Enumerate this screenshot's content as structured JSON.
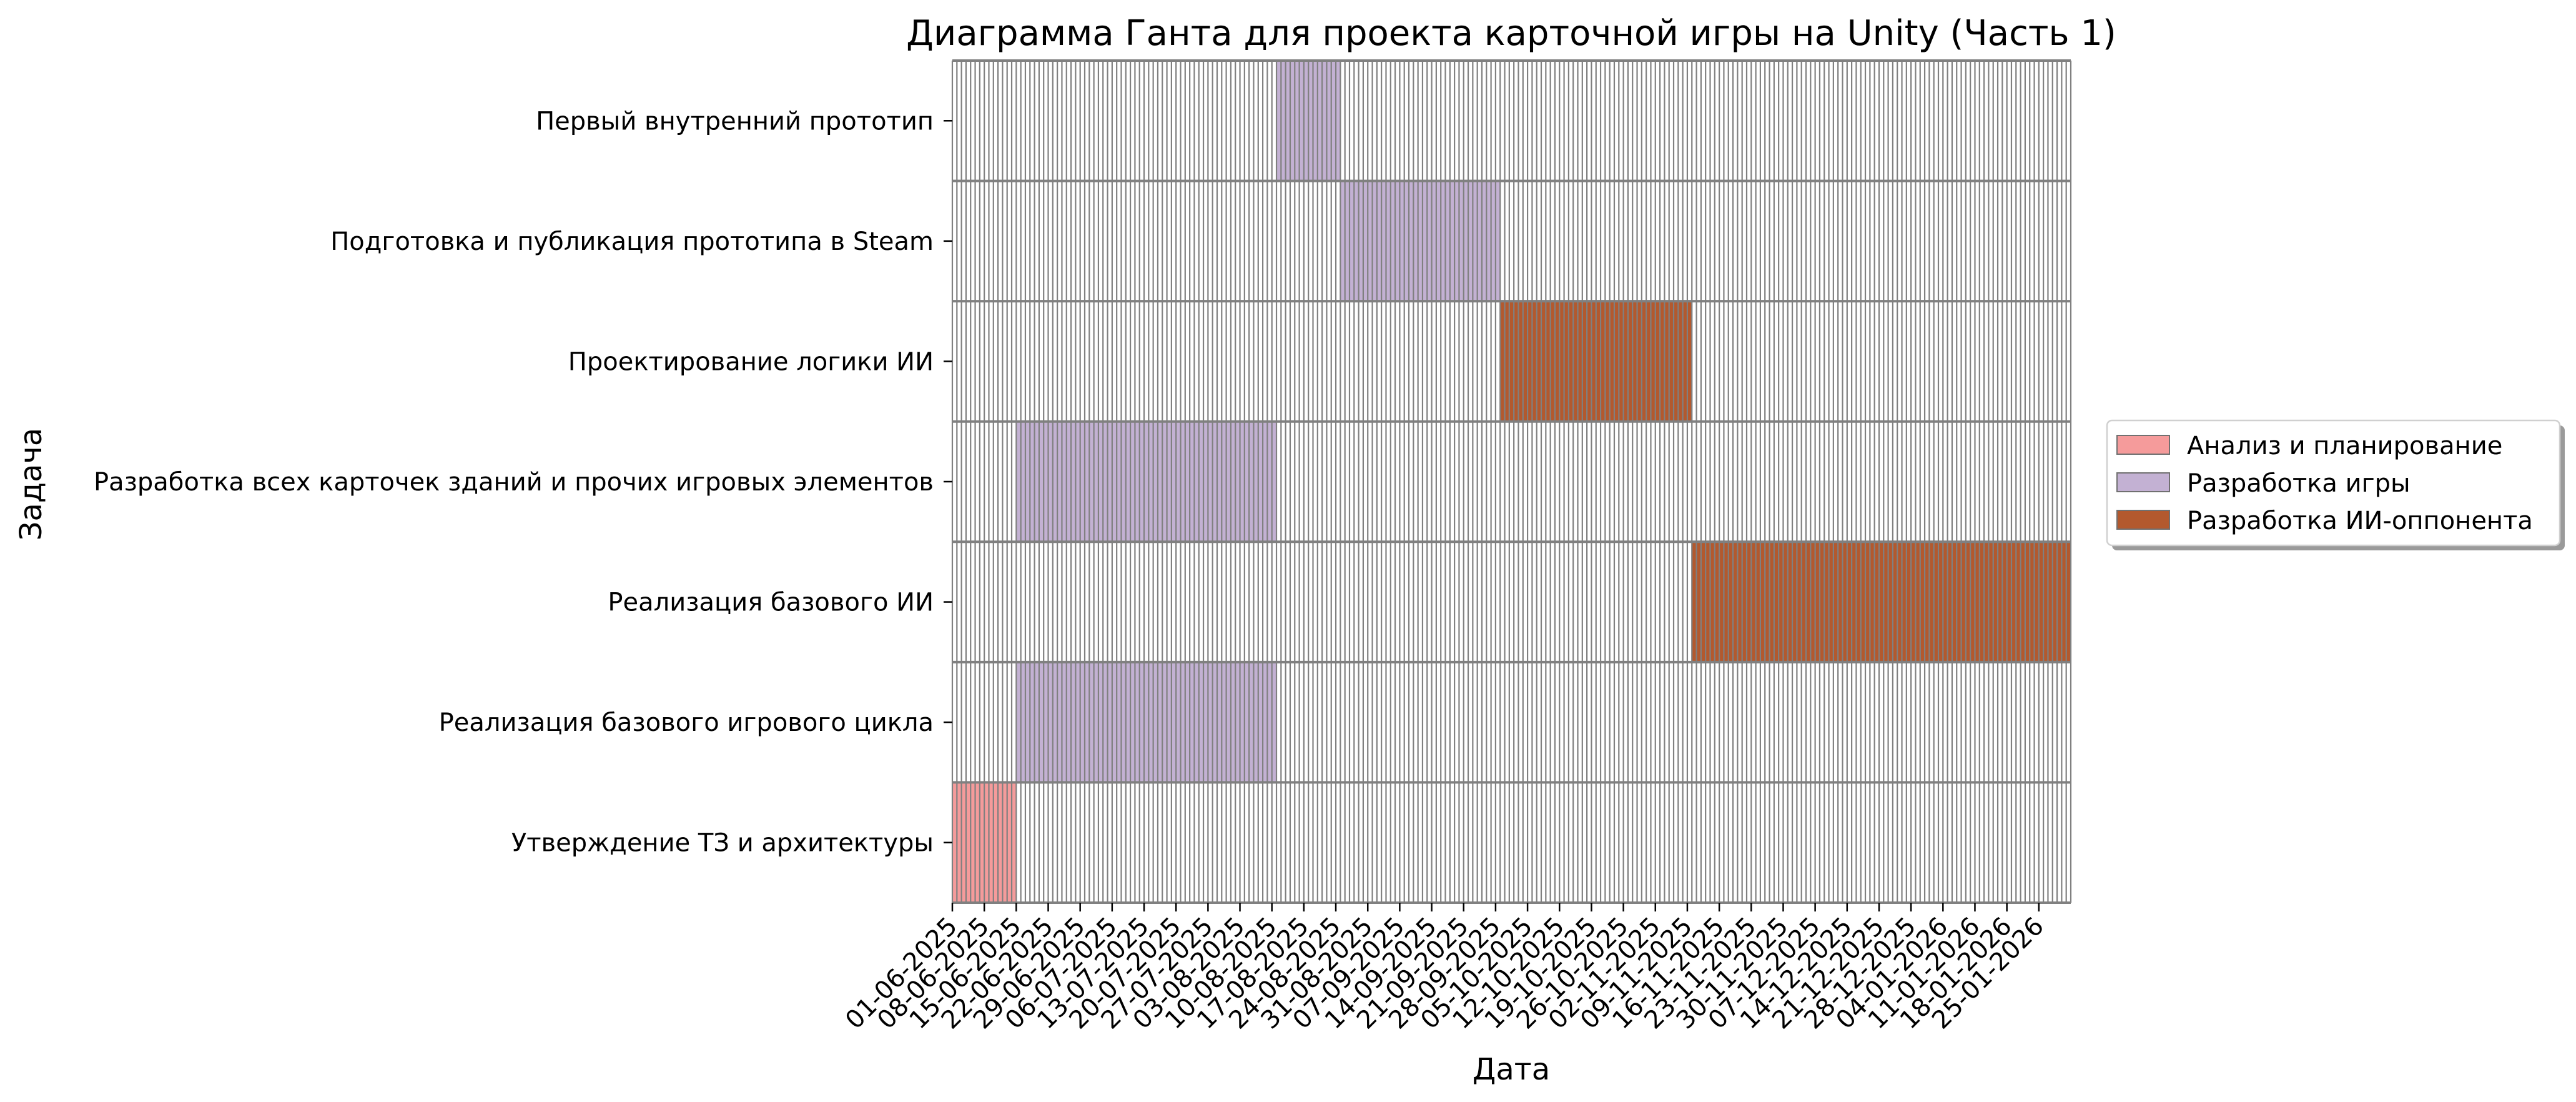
{
  "chart_data": {
    "type": "gantt",
    "title": "Диаграмма Ганта для проекта карточной игры на Unity (Часть 1)",
    "xlabel": "Дата",
    "ylabel": "Задача",
    "x_range": [
      "2025-06-01",
      "2026-01-31"
    ],
    "x_ticks": [
      "01-06-2025",
      "08-06-2025",
      "15-06-2025",
      "22-06-2025",
      "29-06-2025",
      "06-07-2025",
      "13-07-2025",
      "20-07-2025",
      "27-07-2025",
      "03-08-2025",
      "10-08-2025",
      "17-08-2025",
      "24-08-2025",
      "31-08-2025",
      "07-09-2025",
      "14-09-2025",
      "21-09-2025",
      "28-09-2025",
      "05-10-2025",
      "12-10-2025",
      "19-10-2025",
      "26-10-2025",
      "02-11-2025",
      "09-11-2025",
      "16-11-2025",
      "23-11-2025",
      "30-11-2025",
      "07-12-2025",
      "14-12-2025",
      "21-12-2025",
      "28-12-2025",
      "04-01-2026",
      "11-01-2026",
      "18-01-2026",
      "25-01-2026"
    ],
    "grid": true,
    "legend_position": "center-right",
    "categories": [
      {
        "name": "Анализ и планирование",
        "color": "#f59b9b"
      },
      {
        "name": "Разработка игры",
        "color": "#c3b1d3"
      },
      {
        "name": "Разработка ИИ-оппонента",
        "color": "#b3592e"
      }
    ],
    "tasks": [
      {
        "label": "Первый внутренний прототип",
        "category": 1,
        "start": "2025-08-11",
        "end": "2025-08-24"
      },
      {
        "label": "Подготовка и публикация прототипа в Steam",
        "category": 1,
        "start": "2025-08-25",
        "end": "2025-09-28"
      },
      {
        "label": "Проектирование логики ИИ",
        "category": 2,
        "start": "2025-09-29",
        "end": "2025-11-09"
      },
      {
        "label": "Разработка всех карточек зданий и прочих игровых элементов",
        "category": 1,
        "start": "2025-06-15",
        "end": "2025-08-10"
      },
      {
        "label": "Реализация базового ИИ",
        "category": 2,
        "start": "2025-11-10",
        "end": "2026-01-31"
      },
      {
        "label": "Реализация базового игрового цикла",
        "category": 1,
        "start": "2025-06-15",
        "end": "2025-08-10"
      },
      {
        "label": "Утверждение ТЗ и архитектуры",
        "category": 0,
        "start": "2025-06-01",
        "end": "2025-06-14"
      }
    ]
  }
}
